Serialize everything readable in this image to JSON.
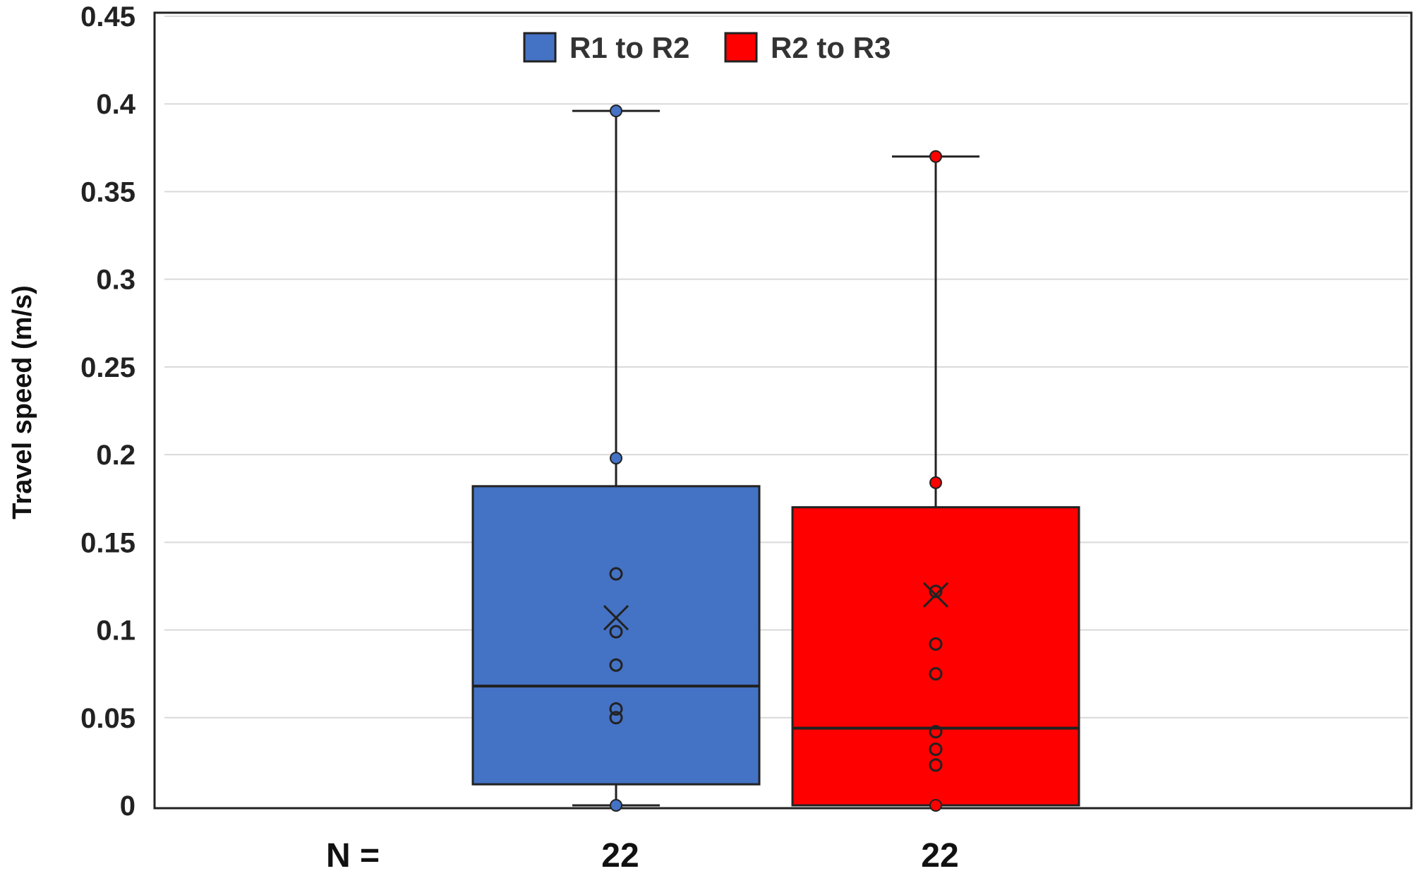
{
  "chart_data": {
    "type": "box",
    "ylabel": "Travel speed (m/s)",
    "ylim": [
      0,
      0.45
    ],
    "yticks": [
      0,
      0.05,
      0.1,
      0.15,
      0.2,
      0.25,
      0.3,
      0.35,
      0.4,
      0.45
    ],
    "ytick_labels": [
      "0",
      "0.05",
      "0.1",
      "0.15",
      "0.2",
      "0.25",
      "0.3",
      "0.35",
      "0.4",
      "0.45"
    ],
    "grid": true,
    "legend_placement": "top-center",
    "n_label": "N =",
    "series": [
      {
        "name": "R1 to R2",
        "color": "#4472C4",
        "n": "22",
        "min": 0.0,
        "q1": 0.012,
        "median": 0.068,
        "q3": 0.182,
        "max": 0.396,
        "mean": 0.107,
        "inner_points": [
          0.132,
          0.099,
          0.08,
          0.055,
          0.05
        ],
        "marker_points": [
          0.396,
          0.198,
          0.0
        ]
      },
      {
        "name": "R2 to R3",
        "color": "#FF0000",
        "n": "22",
        "min": 0.0,
        "q1": 0.0,
        "median": 0.044,
        "q3": 0.17,
        "max": 0.37,
        "mean": 0.12,
        "inner_points": [
          0.122,
          0.092,
          0.075,
          0.042,
          0.032,
          0.023
        ],
        "marker_points": [
          0.37,
          0.184,
          0.0
        ]
      }
    ]
  }
}
